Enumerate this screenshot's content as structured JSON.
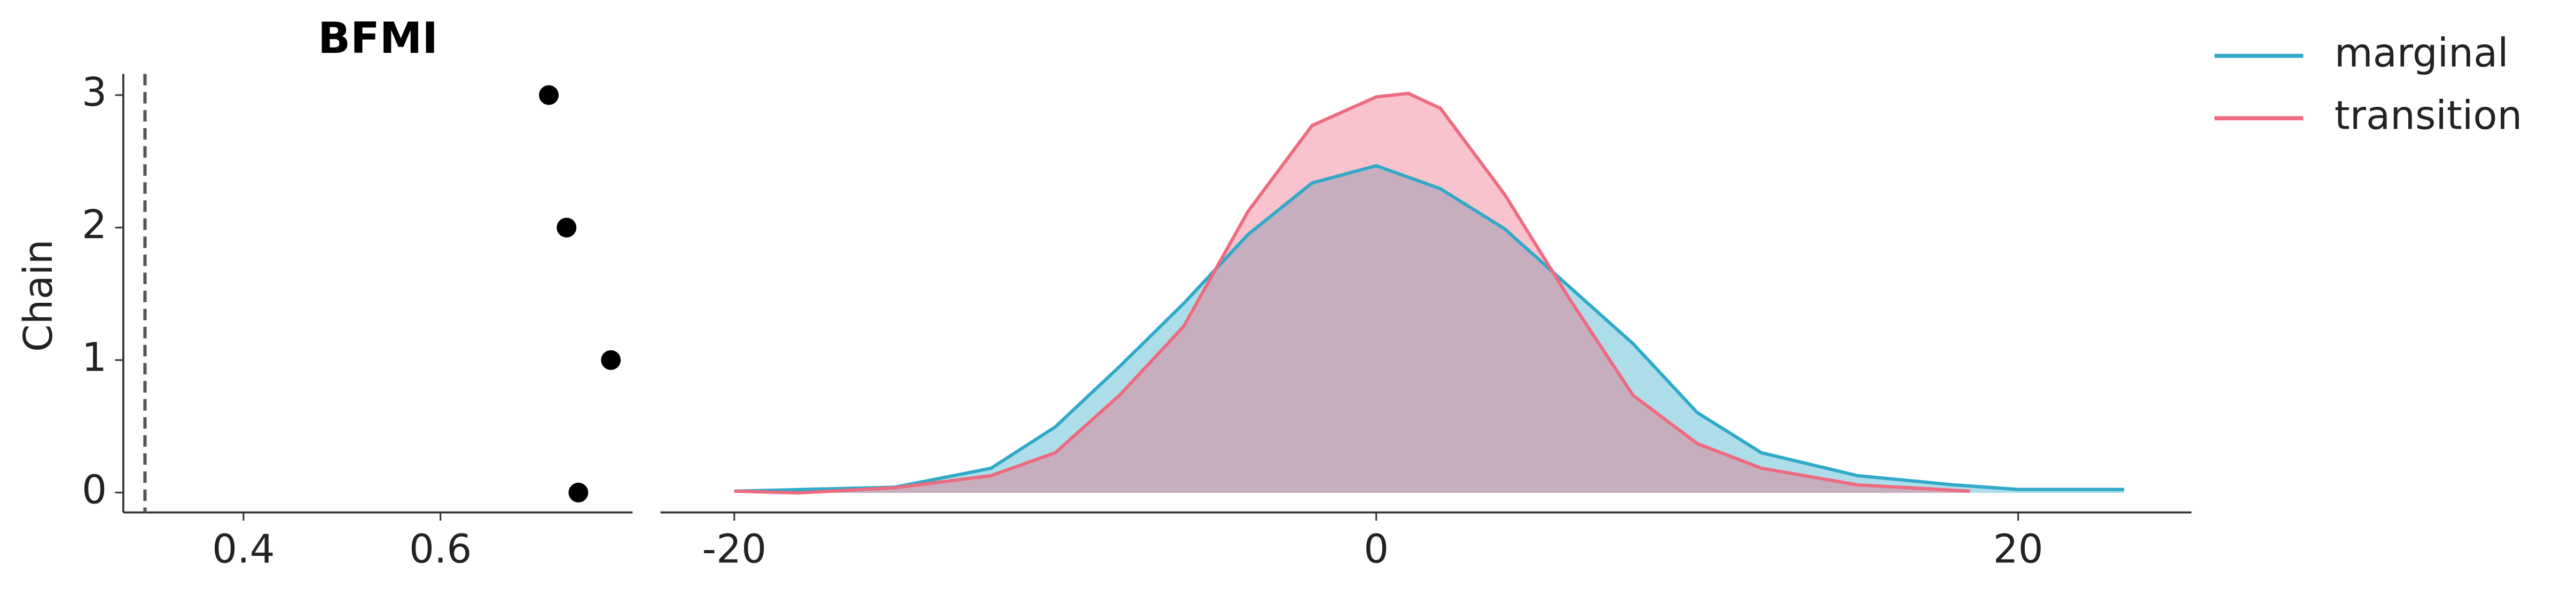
{
  "chart_data": [
    {
      "type": "scatter",
      "title": "BFMI",
      "y_label": "Chain",
      "x": [
        0.74,
        0.773,
        0.728,
        0.71
      ],
      "values": [
        0,
        1,
        2,
        3
      ],
      "color": "#000000",
      "reference_line": 0.3,
      "reference_color": "#555555",
      "xlim": [
        0.278,
        0.795
      ],
      "xticks": [
        0.4,
        0.6
      ],
      "ylim": [
        -0.15,
        3.16
      ],
      "yticks": [
        0,
        1,
        2,
        3
      ]
    },
    {
      "type": "kde",
      "legend": "upper right",
      "series": [
        {
          "name": "marginal",
          "color": "#31a9c8",
          "x": [
            -20,
            -15,
            -12,
            -10,
            -8,
            -6,
            -4,
            -2,
            0,
            2,
            4,
            6,
            8,
            10,
            12,
            15,
            18,
            20,
            23.3
          ],
          "values": [
            0.0003,
            0.001,
            0.0043,
            0.0115,
            0.022,
            0.033,
            0.045,
            0.054,
            0.057,
            0.053,
            0.046,
            0.036,
            0.026,
            0.014,
            0.007,
            0.003,
            0.0014,
            0.0006,
            0.0006
          ]
        },
        {
          "name": "transition",
          "color": "#ee6a7f",
          "x": [
            -20,
            -18,
            -15,
            -12,
            -10,
            -8,
            -6,
            -4,
            -2,
            0,
            1,
            2,
            4,
            6,
            8,
            10,
            12,
            15,
            18.5
          ],
          "values": [
            0.0003,
            0,
            0.0009,
            0.003,
            0.007,
            0.017,
            0.029,
            0.049,
            0.064,
            0.069,
            0.0696,
            0.067,
            0.052,
            0.034,
            0.017,
            0.0086,
            0.0043,
            0.0014,
            0.0003
          ]
        }
      ],
      "xlim": [
        -22.3,
        25.4
      ],
      "xticks": [
        -20,
        0,
        20
      ],
      "ylim": [
        -0.0034,
        0.073
      ]
    }
  ]
}
